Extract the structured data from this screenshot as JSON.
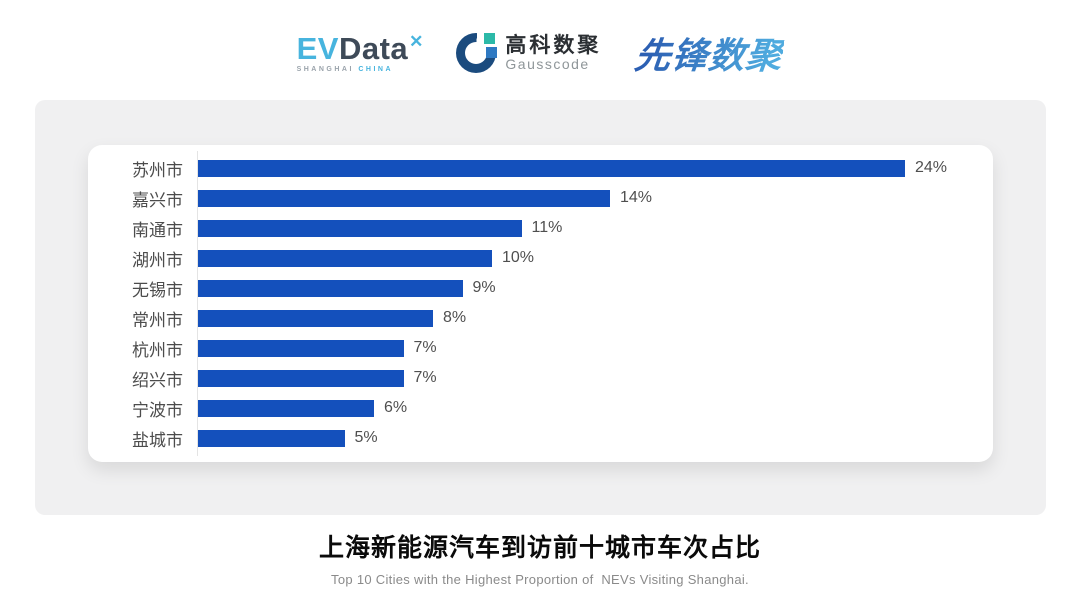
{
  "header": {
    "evdata": {
      "ev": "EV",
      "data": "Data",
      "mark": "✕",
      "sub_left": "SHANGHAI",
      "sub_right": "CHINA"
    },
    "gausscode": {
      "cn": "高科数聚",
      "en": "Gausscode"
    },
    "pioneer": {
      "text": "先锋数聚"
    }
  },
  "chart_data": {
    "type": "bar",
    "orientation": "horizontal",
    "categories": [
      "苏州市",
      "嘉兴市",
      "南通市",
      "湖州市",
      "无锡市",
      "常州市",
      "杭州市",
      "绍兴市",
      "宁波市",
      "盐城市"
    ],
    "values": [
      24,
      14,
      11,
      10,
      9,
      8,
      7,
      7,
      6,
      5
    ],
    "value_labels": [
      "24%",
      "14%",
      "11%",
      "10%",
      "9%",
      "8%",
      "7%",
      "7%",
      "6%",
      "5%"
    ],
    "unit": "%",
    "xlim": [
      0,
      24
    ],
    "grid": false,
    "legend": "none",
    "bar_color": "#1450BC",
    "title": "上海新能源汽车到访前十城市车次占比",
    "subtitle": "Top 10 Cities with the Highest Proportion of  NEVs Visiting Shanghai."
  },
  "footer": {
    "title": "上海新能源汽车到访前十城市车次占比",
    "subtitle": "Top 10 Cities with the Highest Proportion of  NEVs Visiting Shanghai."
  },
  "colors": {
    "bar": "#1450BC",
    "panel_bg": "#f0f0f1",
    "card_bg": "#ffffff",
    "axis_line": "#e4e4e4",
    "label_text": "#4c4c4c",
    "evdata_blue": "#47B4DE",
    "evdata_slate": "#3E4A58",
    "gausscode_navy": "#1B4B7E",
    "gausscode_teal": "#2CB9A8",
    "gausscode_blue": "#2E79C2",
    "pioneer_gradient_start": "#2C5FB3",
    "pioneer_gradient_end": "#4FABDF"
  }
}
